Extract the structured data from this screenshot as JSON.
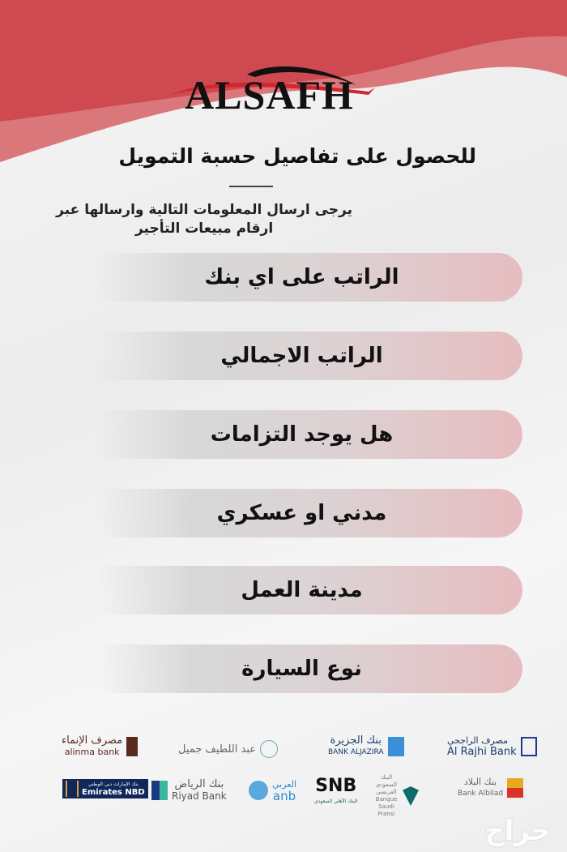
{
  "brand": {
    "name": "ALSAFH",
    "colors": {
      "primary_red": "#cf4a50",
      "light_red": "#d9777b",
      "text": "#111111"
    }
  },
  "header": {
    "title": "للحصول على تفاصيل حسبة التمويل",
    "subtitle_line1": "يرجى ارسال المعلومات التالية وارسالها عبر",
    "subtitle_line2": "ارقام مبيعات التأجير"
  },
  "fields": [
    {
      "label": "الراتب على اي بنك"
    },
    {
      "label": "الراتب الاجمالي"
    },
    {
      "label": "هل يوجد التزامات"
    },
    {
      "label": "مدني او عسكري"
    },
    {
      "label": "مدينة العمل"
    },
    {
      "label": "نوع السيارة"
    }
  ],
  "banks": [
    {
      "ar": "مصرف الراجحي",
      "en": "Al Rajhi Bank",
      "color": "#1f3c8a"
    },
    {
      "ar": "بنك الجزيرة",
      "en": "BANK ALJAZIRA",
      "color": "#1e4f8c"
    },
    {
      "ar": "عبد اللطيف جميل",
      "en": "",
      "color": "#6aa8b8"
    },
    {
      "ar": "مصرف الإنماء",
      "en": "alinma bank",
      "color": "#5a2a1e"
    },
    {
      "ar": "بنك البلاد",
      "en": "Bank Albilad",
      "color": "#e0a020"
    },
    {
      "ar": "البنك السعودي الفرنسي",
      "en": "Banque Saudi Fransi",
      "color": "#0f6a6a"
    },
    {
      "ar": "البنك الأهلي السعودي",
      "en": "SNB",
      "color": "#0b6b3a"
    },
    {
      "ar": "العربي",
      "en": "anb",
      "color": "#2a8ad0"
    },
    {
      "ar": "بنك الرياض",
      "en": "Riyad Bank",
      "color": "#1a5aa0"
    },
    {
      "ar": "بنك الإمارات دبي الوطني",
      "en": "Emirates NBD",
      "color": "#10275a"
    }
  ],
  "watermark": "حراج"
}
